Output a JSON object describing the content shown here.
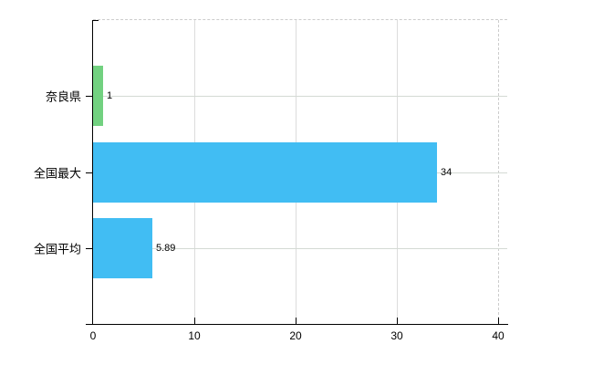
{
  "chart_data": {
    "type": "bar",
    "orientation": "horizontal",
    "title": "",
    "categories": [
      "奈良県",
      "全国最大",
      "全国平均"
    ],
    "values": [
      1,
      34,
      5.89
    ],
    "value_labels": [
      "1",
      "34",
      "5.89"
    ],
    "series_colors": [
      "#72d180",
      "#41bdf3",
      "#41bdf3"
    ],
    "xlim": [
      0,
      40
    ],
    "x_ticks": [
      0,
      10,
      20,
      30,
      40
    ],
    "x_tick_labels": [
      "0",
      "10",
      "20",
      "30",
      "40"
    ],
    "grid": true,
    "legend": false
  },
  "colors": {
    "bar_green": "#72d180",
    "bar_blue": "#41bdf3",
    "gridline": "#dcdcdc",
    "row_gridline": "#d4dad4",
    "dashed_border": "#cccccc",
    "axis": "#000000",
    "text": "#000000",
    "background": "#ffffff"
  }
}
